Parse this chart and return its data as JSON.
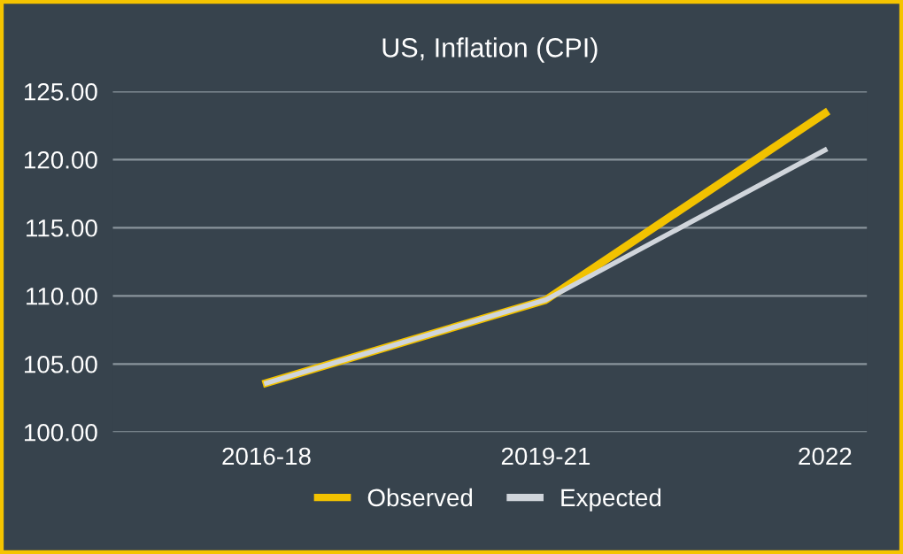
{
  "chart_data": {
    "type": "line",
    "title": "US, Inflation (CPI)",
    "categories": [
      "2016-18",
      "2019-21",
      "2022"
    ],
    "series": [
      {
        "name": "Observed",
        "color": "#f2c200",
        "values": [
          103.6,
          109.7,
          123.4
        ]
      },
      {
        "name": "Expected",
        "color": "#d0d5db",
        "values": [
          103.6,
          109.7,
          120.7
        ]
      }
    ],
    "ylim": [
      100,
      125
    ],
    "yticks": [
      {
        "value": 100,
        "label": "100.00"
      },
      {
        "value": 105,
        "label": "105.00"
      },
      {
        "value": 110,
        "label": "110.00"
      },
      {
        "value": 115,
        "label": "115.00"
      },
      {
        "value": 120,
        "label": "120.00"
      },
      {
        "value": 125,
        "label": "125.00"
      }
    ],
    "grid": "y",
    "legend": "bottom",
    "marker": "none",
    "line_style": "solid"
  }
}
